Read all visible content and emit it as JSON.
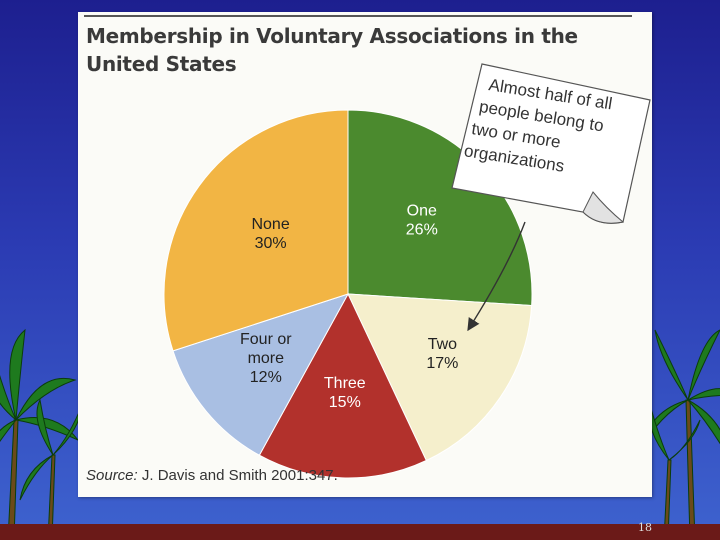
{
  "slide": {
    "page_number": "18",
    "colors": {
      "background_top": "#1d1f8f",
      "background_bottom": "#3e63cf",
      "footer_bar": "#6b1a18",
      "palm_leaf": "#1e7a1e"
    }
  },
  "figure": {
    "title": "Membership in Voluntary Associations in the United States",
    "source_label": "Source:",
    "source_text": " J. Davis and Smith 2001:347.",
    "callout": {
      "lines": [
        "Almost half of all",
        "people belong to",
        "two or more",
        "organizations"
      ]
    }
  },
  "chart_data": {
    "type": "pie",
    "title": "Membership in Voluntary Associations in the United States",
    "slices": [
      {
        "label": "One",
        "value": 26,
        "value_label": "26%",
        "color": "#4b8a2e"
      },
      {
        "label": "Two",
        "value": 17,
        "value_label": "17%",
        "color": "#f5efcc"
      },
      {
        "label": "Three",
        "value": 15,
        "value_label": "15%",
        "color": "#b2312c"
      },
      {
        "label": "Four or more",
        "value": 12,
        "value_label": "12%",
        "color": "#a9bfe3"
      },
      {
        "label": "None",
        "value": 30,
        "value_label": "30%",
        "color": "#f2b544"
      }
    ],
    "start_angle_deg": 0,
    "direction": "clockwise",
    "annotation": "Almost half of all people belong to two or more organizations"
  }
}
